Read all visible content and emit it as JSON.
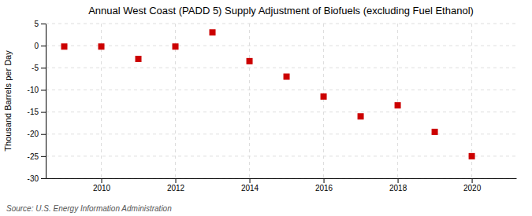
{
  "chart_data": {
    "type": "scatter",
    "title": "Annual West Coast (PADD 5) Supply Adjustment of Biofuels (excluding Fuel Ethanol)",
    "ylabel": "Thousand Barrels per Day",
    "source": "Source: U.S. Energy Information Administration",
    "x": [
      2009,
      2010,
      2011,
      2012,
      2013,
      2014,
      2015,
      2016,
      2017,
      2018,
      2019,
      2020
    ],
    "values": [
      -0.2,
      -0.2,
      -3.0,
      -0.2,
      3.0,
      -3.5,
      -7.0,
      -11.5,
      -16.0,
      -13.5,
      -19.5,
      -25.0
    ],
    "color": "#cc0000",
    "marker": "square",
    "xlim": [
      2008.5,
      2021.2
    ],
    "ylim": [
      -30,
      5
    ],
    "xticks": [
      2010,
      2012,
      2014,
      2016,
      2018,
      2020
    ],
    "yticks": [
      5,
      0,
      -5,
      -10,
      -15,
      -20,
      -25,
      -30
    ],
    "grid": true
  }
}
